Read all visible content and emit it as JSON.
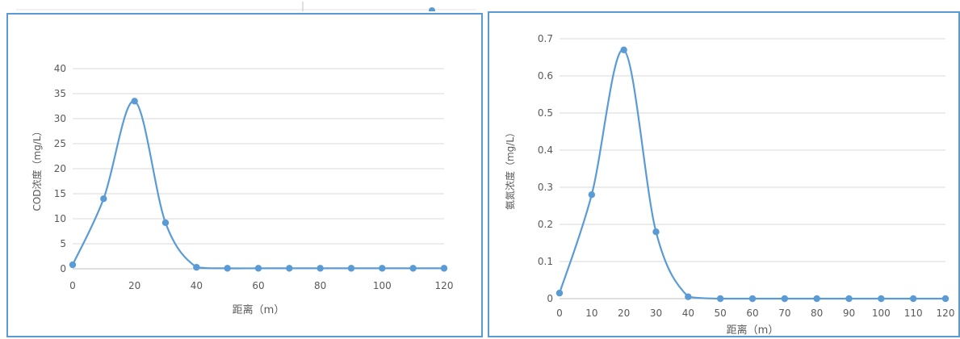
{
  "chart_data": [
    {
      "type": "line",
      "smooth": true,
      "markers": true,
      "xlabel": "距离（m）",
      "ylabel": "COD浓度（mg/L）",
      "xlim": [
        0,
        120
      ],
      "ylim": [
        0,
        40
      ],
      "xticks": [
        0,
        20,
        40,
        60,
        80,
        100,
        120
      ],
      "yticks": [
        0,
        5,
        10,
        15,
        20,
        25,
        30,
        35,
        40
      ],
      "grid": "horizontal",
      "legend": "none",
      "color": "#5b9bd5",
      "x": [
        0,
        10,
        20,
        30,
        40,
        50,
        60,
        70,
        80,
        90,
        100,
        110,
        120
      ],
      "series": [
        {
          "values": [
            0.8,
            14.0,
            33.5,
            9.2,
            0.3,
            0.1,
            0.1,
            0.1,
            0.1,
            0.1,
            0.1,
            0.1,
            0.1
          ]
        }
      ]
    },
    {
      "type": "line",
      "smooth": true,
      "markers": true,
      "xlabel": "距离（m）",
      "ylabel": "氨氮浓度（mg/L）",
      "xlim": [
        0,
        120
      ],
      "ylim": [
        0,
        0.7
      ],
      "xticks": [
        0,
        10,
        20,
        30,
        40,
        50,
        60,
        70,
        80,
        90,
        100,
        110,
        120
      ],
      "yticks": [
        0,
        0.1,
        0.2,
        0.3,
        0.4,
        0.5,
        0.6,
        0.7
      ],
      "grid": "horizontal",
      "legend": "none",
      "color": "#5b9bd5",
      "x": [
        0,
        10,
        20,
        30,
        40,
        50,
        60,
        70,
        80,
        90,
        100,
        110,
        120
      ],
      "series": [
        {
          "values": [
            0.015,
            0.28,
            0.67,
            0.18,
            0.005,
            0.0,
            0.0,
            0.0,
            0.0,
            0.0,
            0.0,
            0.0,
            0.0
          ]
        }
      ]
    }
  ]
}
